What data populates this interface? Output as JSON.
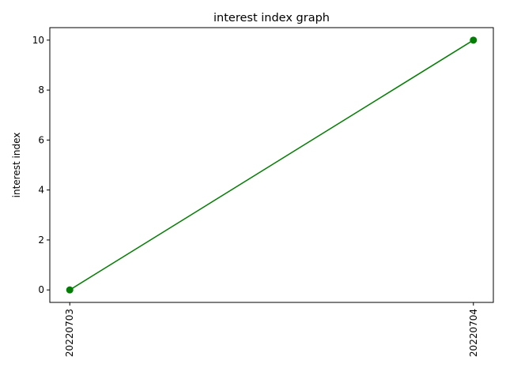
{
  "chart_data": {
    "type": "line",
    "title": "interest index graph",
    "xlabel": "",
    "ylabel": "interest index",
    "categories": [
      "20220703",
      "20220704"
    ],
    "series": [
      {
        "values": [
          0,
          10
        ],
        "color": "#008000",
        "marker": "circle"
      }
    ],
    "ylim": [
      -0.5,
      10.5
    ],
    "yticks": [
      0,
      2,
      4,
      6,
      8,
      10
    ],
    "grid": false,
    "legend": "none"
  }
}
